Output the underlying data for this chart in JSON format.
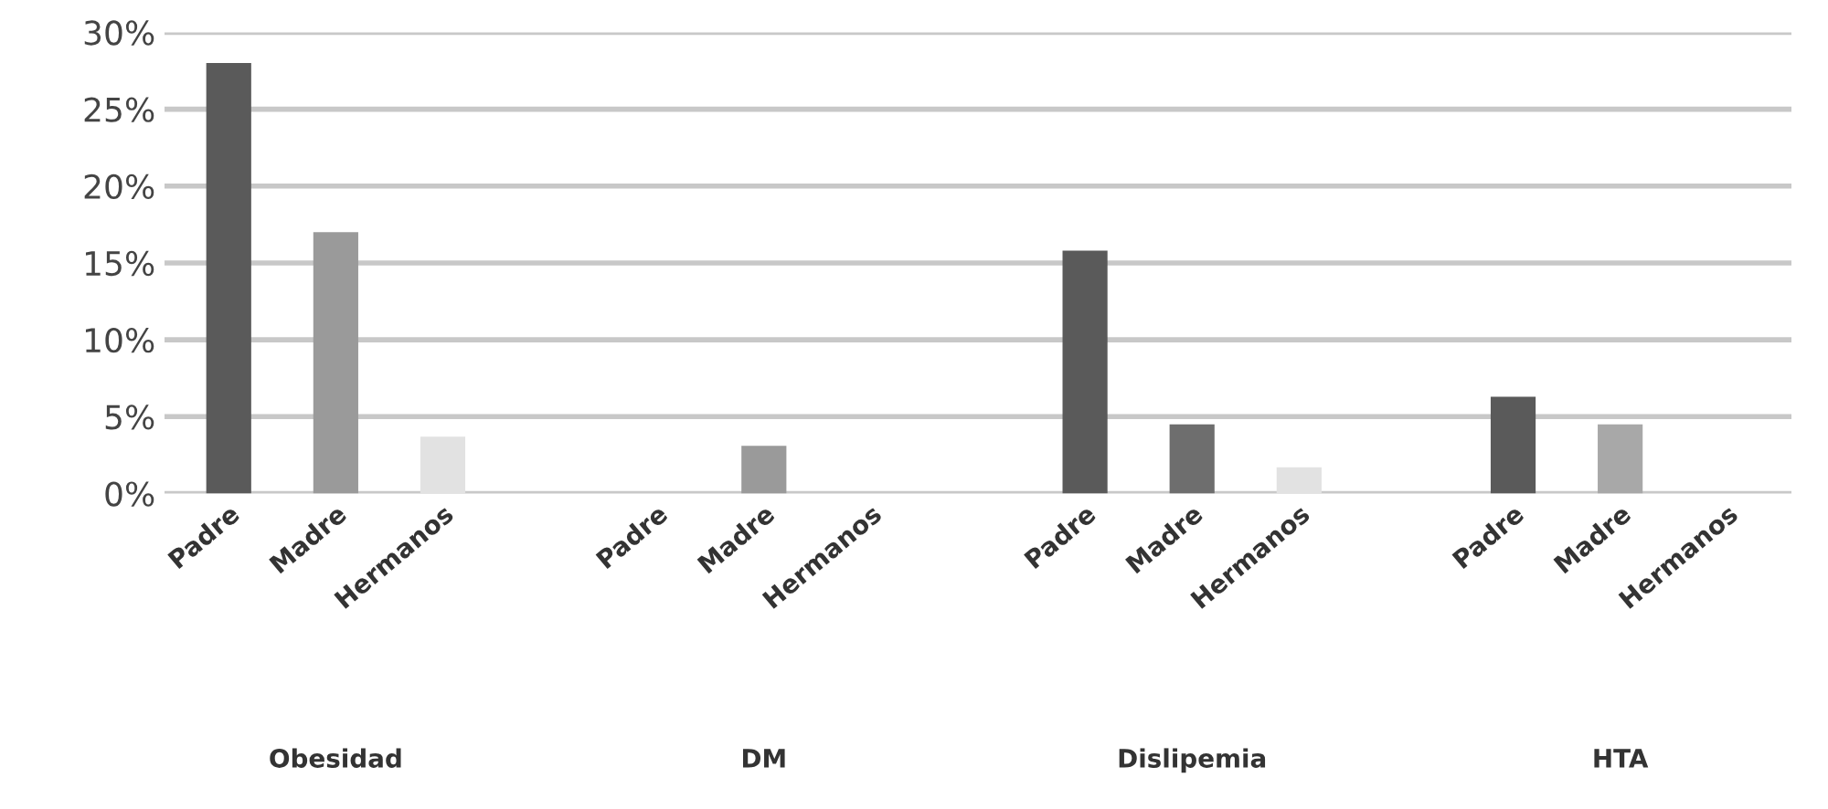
{
  "chart_data": {
    "type": "bar",
    "categories": [
      "Padre",
      "Madre",
      "Hermanos",
      null,
      "Padre",
      "Madre",
      "Hermanos",
      null,
      "Padre",
      "Madre",
      "Hermanos",
      null,
      "Padre",
      "Madre",
      "Hermanos"
    ],
    "values": [
      28,
      17,
      3.7,
      null,
      0,
      3.1,
      0,
      null,
      15.8,
      4.5,
      1.7,
      null,
      6.3,
      4.5,
      0
    ],
    "colors": [
      "#5a5a5a",
      "#9a9a9a",
      "#e2e2e2",
      null,
      "#5a5a5a",
      "#9a9a9a",
      "#e2e2e2",
      null,
      "#5a5a5a",
      "#6e6e6e",
      "#e2e2e2",
      null,
      "#5a5a5a",
      "#a8a8a8",
      "#e2e2e2"
    ],
    "annotations": [
      "Obesidad",
      "DM",
      "Dislipemia",
      "HTA"
    ],
    "ylim": [
      0,
      30
    ],
    "yticks": [
      {
        "value": 0,
        "label": "0%"
      },
      {
        "value": 5,
        "label": "5%"
      },
      {
        "value": 10,
        "label": "10%"
      },
      {
        "value": 15,
        "label": "15%"
      },
      {
        "value": 20,
        "label": "20%"
      },
      {
        "value": 25,
        "label": "25%"
      },
      {
        "value": 30,
        "label": "30%"
      }
    ],
    "grid": "y"
  }
}
